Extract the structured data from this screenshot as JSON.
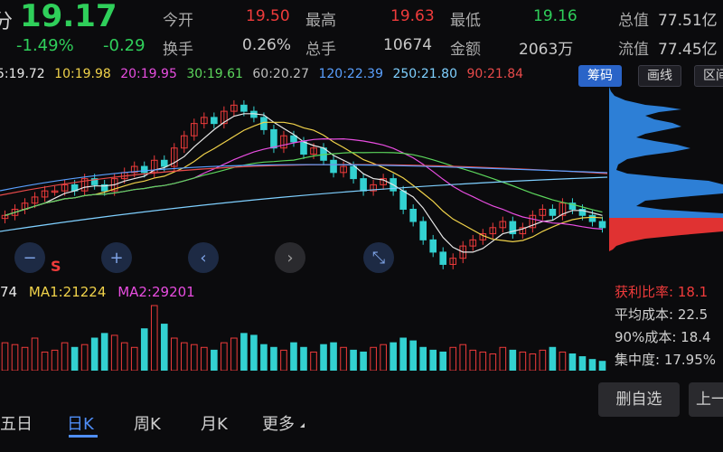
{
  "quote": {
    "period_label": "分",
    "price": "19.17",
    "change_pct": "-1.49%",
    "change_abs": "-0.29",
    "open_label": "今开",
    "open_value": "19.50",
    "high_label": "最高",
    "high_value": "19.63",
    "low_label": "最低",
    "low_value": "19.16",
    "mcap_label": "总值",
    "mcap_value": "77.51亿",
    "turnover_label": "换手",
    "turnover_value": "0.26%",
    "vol_label": "总手",
    "vol_value": "10674",
    "amount_label": "金额",
    "amount_value": "2063万",
    "float_label": "流值",
    "float_value": "77.45亿"
  },
  "ma_legend": {
    "ma5": "5:19.72",
    "ma10": "10:19.98",
    "ma20": "20:19.95",
    "ma30": "30:19.61",
    "ma60": "60:20.27",
    "ma120": "120:22.39",
    "ma250": "250:21.80",
    "ma90": "90:21.84"
  },
  "tools": {
    "chip_label": "筹码",
    "draw_label": "画线",
    "range_label": "区间"
  },
  "controls": {
    "zoom_out": "−",
    "zoom_in": "+",
    "prev": "‹",
    "next": "›",
    "reset": "⤡",
    "s_marker": "S"
  },
  "volume_legend": {
    "vol": "74",
    "ma1": "MA1:21224",
    "ma2": "MA2:29201"
  },
  "chips": {
    "profit_ratio": "获利比率: 18.1",
    "avg_cost": "平均成本: 22.5",
    "cost90": "90%成本: 18.4",
    "concentration": "集中度: 17.95%"
  },
  "periods": {
    "p1": "五日",
    "p2": "日K",
    "p3": "周K",
    "p4": "月K",
    "p5": "更多"
  },
  "actions": {
    "remove_watch": "删自选",
    "prev_stock": "上一"
  },
  "chart_data": {
    "type": "candlestick",
    "price_range": [
      18.5,
      21.6
    ],
    "closes": [
      19.5,
      19.6,
      19.7,
      19.8,
      19.9,
      19.9,
      20.0,
      19.9,
      20.1,
      20.0,
      19.9,
      20.1,
      20.2,
      20.3,
      20.2,
      20.4,
      20.3,
      20.6,
      20.8,
      21.0,
      21.1,
      21.0,
      21.2,
      21.3,
      21.2,
      21.1,
      20.9,
      20.6,
      20.8,
      20.7,
      20.5,
      20.6,
      20.4,
      20.2,
      20.3,
      20.1,
      19.9,
      20.0,
      20.1,
      19.9,
      19.6,
      19.4,
      19.1,
      18.9,
      18.7,
      18.8,
      19.0,
      19.1,
      19.2,
      19.3,
      19.4,
      19.2,
      19.3,
      19.5,
      19.6,
      19.5,
      19.7,
      19.6,
      19.5,
      19.4,
      19.3
    ],
    "volumes": [
      30,
      28,
      25,
      35,
      20,
      22,
      30,
      25,
      28,
      35,
      40,
      38,
      30,
      25,
      45,
      70,
      50,
      35,
      30,
      28,
      25,
      22,
      30,
      35,
      40,
      38,
      28,
      25,
      22,
      30,
      25,
      20,
      28,
      30,
      25,
      22,
      20,
      25,
      28,
      30,
      35,
      32,
      25,
      22,
      20,
      25,
      28,
      22,
      20,
      18,
      25,
      22,
      20,
      18,
      22,
      25,
      20,
      18,
      15,
      12,
      10
    ]
  }
}
